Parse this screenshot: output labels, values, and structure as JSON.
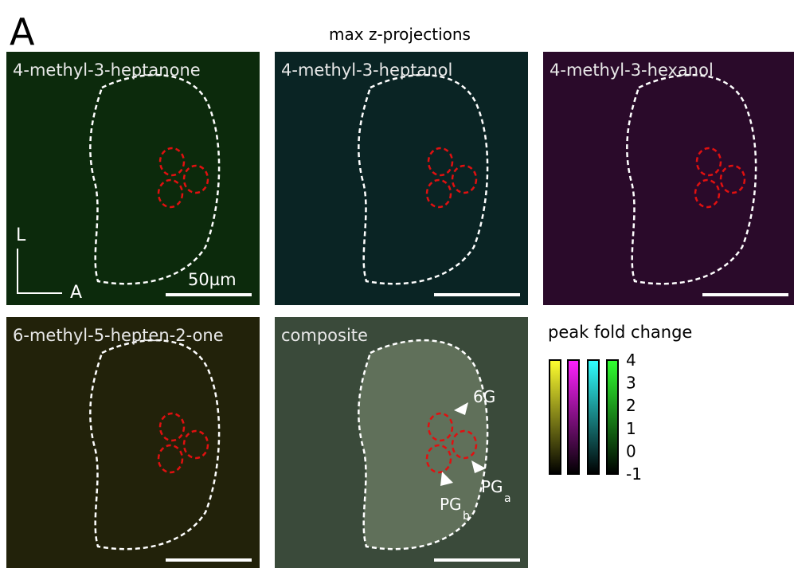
{
  "figure": {
    "label": "A",
    "title": "max z-projections",
    "panels": [
      "4-methyl-3-heptanone",
      "4-methyl-3-heptanol",
      "4-methyl-3-hexanol",
      "6-methyl-5-hepten-2-one",
      "composite"
    ],
    "axes": {
      "lateral": "L",
      "anterior": "A"
    },
    "scale_bar": "50µm",
    "annotations": {
      "glomerulus": "6G",
      "pgb": {
        "text": "PG",
        "sub": "b"
      },
      "pga": {
        "text": "PG",
        "sub": "a"
      }
    },
    "colorbar": {
      "title": "peak fold change",
      "ticks": [
        4,
        3,
        2,
        1,
        0,
        -1
      ]
    }
  }
}
